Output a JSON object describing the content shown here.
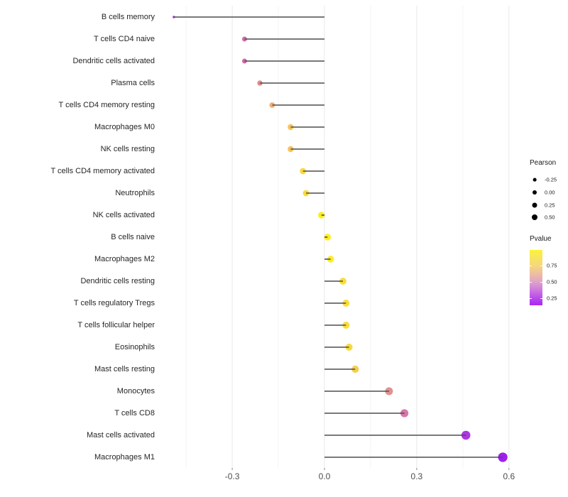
{
  "chart_data": {
    "type": "scatter",
    "variant": "horizontal-lollipop",
    "title": "",
    "xlabel": "",
    "ylabel": "",
    "grid": "major+minor vertical, light gray on white",
    "legend_position": "right",
    "xlim": [
      -0.54,
      0.65
    ],
    "x_tick_values": [
      -0.3,
      0.0,
      0.3,
      0.6
    ],
    "x_tick_labels": [
      "-0.3",
      "0.0",
      "0.3",
      "0.6"
    ],
    "x_minor_tick_values": [
      -0.45,
      -0.15,
      0.15,
      0.45
    ],
    "categories": [
      "B cells memory",
      "T cells CD4 naive",
      "Dendritic cells activated",
      "Plasma cells",
      "T cells CD4 memory resting",
      "Macrophages M0",
      "NK cells resting",
      "T cells CD4 memory activated",
      "Neutrophils",
      "NK cells activated",
      "B cells naive",
      "Macrophages M2",
      "Dendritic cells resting",
      "T cells regulatory  Tregs",
      "T cells follicular helper",
      "Eosinophils",
      "Mast cells resting",
      "Monocytes",
      "T cells CD8",
      "Mast cells activated",
      "Macrophages M1"
    ],
    "series": [
      {
        "name": "Pearson",
        "values": [
          -0.49,
          -0.26,
          -0.26,
          -0.21,
          -0.17,
          -0.11,
          -0.11,
          -0.07,
          -0.06,
          -0.01,
          0.01,
          0.02,
          0.06,
          0.07,
          0.07,
          0.08,
          0.1,
          0.21,
          0.26,
          0.46,
          0.58
        ]
      }
    ],
    "point_colors": [
      "#B133E3",
      "#D06CA6",
      "#CF69A5",
      "#E08B89",
      "#F0AC73",
      "#F6C45C",
      "#F6C45C",
      "#FAD83F",
      "#FAD93D",
      "#FCEE1E",
      "#FDEE1D",
      "#FCED20",
      "#F8DE36",
      "#F8DD38",
      "#F8DC39",
      "#F7D93F",
      "#F5CE4E",
      "#E29091",
      "#D678A8",
      "#AD36E2",
      "#A01EF0"
    ],
    "stem_color": "#4d4d4d",
    "size_encodes": "Pearson",
    "color_encodes": "Pvalue",
    "legend": {
      "size": {
        "title": "Pearson",
        "items": [
          {
            "label": "-0.25",
            "value": -0.25
          },
          {
            "label": "0.00",
            "value": 0.0
          },
          {
            "label": "0.25",
            "value": 0.25
          },
          {
            "label": "0.50",
            "value": 0.5
          }
        ]
      },
      "color": {
        "title": "Pvalue",
        "labels": [
          "0.75",
          "0.50",
          "0.25"
        ],
        "gradient_stops": [
          "#FAF339 0%",
          "#F8E55E 14%",
          "#F5D581 30%",
          "#EDBCA4 44%",
          "#DEA3C9 58%",
          "#CD7BDD 72%",
          "#BB4DEB 86%",
          "#A826F3 100%"
        ]
      }
    }
  }
}
